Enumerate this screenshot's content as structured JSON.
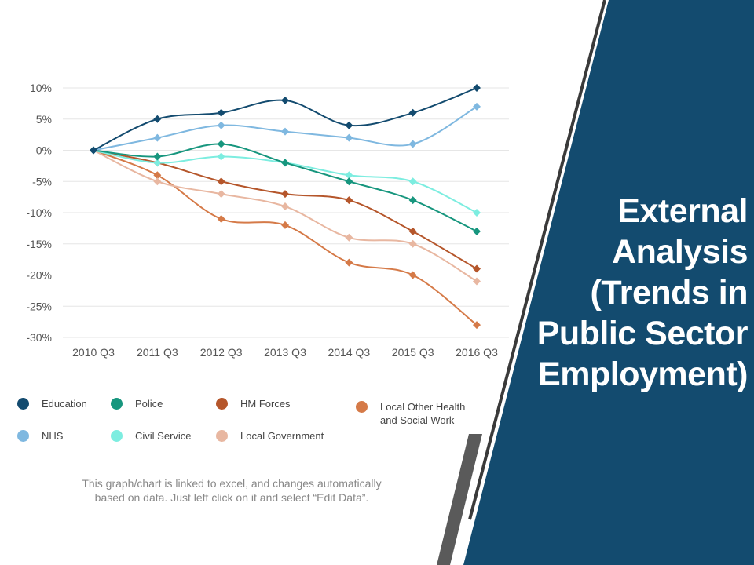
{
  "title_lines": [
    "External",
    "Analysis",
    "(Trends in",
    "Public Sector",
    "Employment)"
  ],
  "note_lines": [
    "This graph/chart is linked to excel, and changes automatically",
    "based on data. Just left click on it and select “Edit Data”."
  ],
  "colors": {
    "panel": "#134B6F",
    "stripe_dark": "#3A3A3A",
    "stripe_gray": "#5A5A5A",
    "grid": "#E6E6E6",
    "axis_text": "#555555"
  },
  "chart_data": {
    "type": "line",
    "categories": [
      "2010 Q3",
      "2011 Q3",
      "2012 Q3",
      "2013 Q3",
      "2014 Q3",
      "2015 Q3",
      "2016 Q3"
    ],
    "ylim": [
      -30,
      10
    ],
    "yticks": [
      10,
      5,
      0,
      -5,
      -10,
      -15,
      -20,
      -25,
      -30
    ],
    "ytick_labels": [
      "10%",
      "5%",
      "0%",
      "-5%",
      "-10%",
      "-15%",
      "-20%",
      "-25%",
      "-30%"
    ],
    "grid": true,
    "series": [
      {
        "name": "Education",
        "color": "#134B6F",
        "values": [
          0,
          5,
          6,
          8,
          4,
          6,
          10
        ]
      },
      {
        "name": "NHS",
        "color": "#7FB8E0",
        "values": [
          0,
          2,
          4,
          3,
          2,
          1,
          7
        ]
      },
      {
        "name": "Police",
        "color": "#17967E",
        "values": [
          0,
          -1,
          1,
          -2,
          -5,
          -8,
          -13
        ]
      },
      {
        "name": "Civil Service",
        "color": "#7DEDE0",
        "values": [
          0,
          -2,
          -1,
          -2,
          -4,
          -5,
          -10
        ]
      },
      {
        "name": "HM Forces",
        "color": "#B5562B",
        "values": [
          0,
          -2,
          -5,
          -7,
          -8,
          -13,
          -19
        ]
      },
      {
        "name": "Local Government",
        "color": "#E8B7A1",
        "values": [
          0,
          -5,
          -7,
          -9,
          -14,
          -15,
          -21
        ]
      },
      {
        "name": "Local Other Health and Social Work",
        "color": "#D57A48",
        "values": [
          0,
          -4,
          -11,
          -12,
          -18,
          -20,
          -28
        ]
      }
    ],
    "legend": [
      {
        "name": "Education",
        "color": "#134B6F"
      },
      {
        "name": "Police",
        "color": "#17967E"
      },
      {
        "name": "HM Forces",
        "color": "#B5562B"
      },
      {
        "name": "Local Other Health and Social Work",
        "color": "#D57A48"
      },
      {
        "name": "NHS",
        "color": "#7FB8E0"
      },
      {
        "name": "Civil Service",
        "color": "#7DEDE0"
      },
      {
        "name": "Local Government",
        "color": "#E8B7A1"
      }
    ]
  }
}
